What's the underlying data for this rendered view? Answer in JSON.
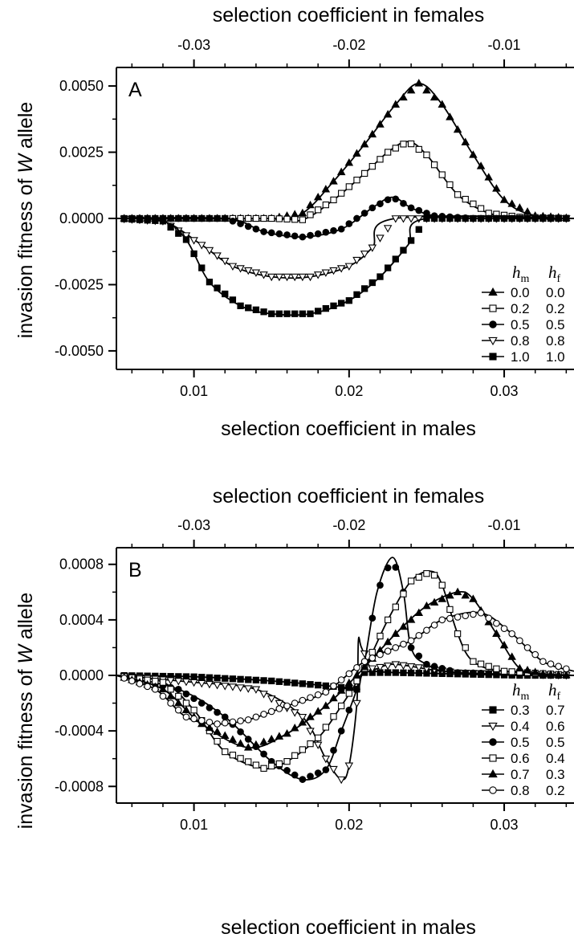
{
  "chart_data": [
    {
      "type": "line",
      "panel": "A",
      "top_xlabel": "selection coefficient in females",
      "xlabel": "selection coefficient in males",
      "ylabel_parts": [
        "invasion fitness of ",
        "W",
        " allele"
      ],
      "xlim": [
        0.005,
        0.0345
      ],
      "ylim": [
        -0.0057,
        0.0057
      ],
      "xticks": [
        0.01,
        0.02,
        0.03
      ],
      "xticklabels": [
        "0.01",
        "0.02",
        "0.03"
      ],
      "top_xticks": [
        0.01,
        0.02,
        0.03
      ],
      "top_xticklabels": [
        "-0.03",
        "-0.02",
        "-0.01"
      ],
      "yticks": [
        0.005,
        0.0025,
        0,
        -0.0025,
        -0.005
      ],
      "yticklabels": [
        "0.0050",
        "0.0025",
        "0.0000",
        "-0.0025",
        "-0.0050"
      ],
      "legend": {
        "placement": "bottom-right",
        "headers": {
          "hm": {
            "main": "h",
            "sub": "m"
          },
          "hf": {
            "main": "h",
            "sub": "f"
          }
        }
      },
      "series": [
        {
          "hm": "0.0",
          "hf": "0.0",
          "marker": "filled-triangle-up",
          "points": [
            [
              0.005,
              0
            ],
            [
              0.015,
              0
            ],
            [
              0.017,
              0.0002
            ],
            [
              0.019,
              0.0014
            ],
            [
              0.021,
              0.0028
            ],
            [
              0.023,
              0.0043
            ],
            [
              0.0245,
              0.0051
            ],
            [
              0.026,
              0.0043
            ],
            [
              0.028,
              0.0024
            ],
            [
              0.03,
              0.0007
            ],
            [
              0.032,
              0.0001
            ],
            [
              0.0345,
              0
            ]
          ]
        },
        {
          "hm": "0.2",
          "hf": "0.2",
          "marker": "open-square",
          "points": [
            [
              0.005,
              0
            ],
            [
              0.015,
              0
            ],
            [
              0.017,
              -5e-05
            ],
            [
              0.019,
              0.0007
            ],
            [
              0.021,
              0.0017
            ],
            [
              0.0225,
              0.0025
            ],
            [
              0.0238,
              0.0029
            ],
            [
              0.025,
              0.0024
            ],
            [
              0.027,
              0.0009
            ],
            [
              0.029,
              0.0002
            ],
            [
              0.031,
              5e-05
            ],
            [
              0.0345,
              0
            ]
          ]
        },
        {
          "hm": "0.5",
          "hf": "0.5",
          "marker": "filled-circle",
          "points": [
            [
              0.005,
              0
            ],
            [
              0.012,
              0
            ],
            [
              0.0145,
              -0.0005
            ],
            [
              0.017,
              -0.0007
            ],
            [
              0.0195,
              -0.0004
            ],
            [
              0.0215,
              0.0004
            ],
            [
              0.0228,
              0.0008
            ],
            [
              0.024,
              0.0004
            ],
            [
              0.0255,
              0.0001
            ],
            [
              0.028,
              0
            ],
            [
              0.0345,
              0
            ]
          ]
        },
        {
          "hm": "0.8",
          "hf": "0.8",
          "marker": "open-triangle-down",
          "points": [
            [
              0.005,
              0
            ],
            [
              0.008,
              -0.0001
            ],
            [
              0.0105,
              -0.001
            ],
            [
              0.0125,
              -0.0018
            ],
            [
              0.015,
              -0.0022
            ],
            [
              0.0175,
              -0.0022
            ],
            [
              0.02,
              -0.0018
            ],
            [
              0.0215,
              -0.0011
            ],
            [
              0.023,
              0
            ],
            [
              0.0345,
              0
            ]
          ]
        },
        {
          "hm": "1.0",
          "hf": "1.0",
          "marker": "filled-square",
          "points": [
            [
              0.005,
              0
            ],
            [
              0.008,
              -0.0001
            ],
            [
              0.0095,
              -0.0008
            ],
            [
              0.011,
              -0.0024
            ],
            [
              0.013,
              -0.0033
            ],
            [
              0.015,
              -0.0036
            ],
            [
              0.0175,
              -0.0036
            ],
            [
              0.02,
              -0.0031
            ],
            [
              0.022,
              -0.0022
            ],
            [
              0.0238,
              -0.001
            ],
            [
              0.025,
              0
            ],
            [
              0.0345,
              0
            ]
          ]
        }
      ]
    },
    {
      "type": "line",
      "panel": "B",
      "top_xlabel": "selection coefficient in females",
      "xlabel": "selection coefficient in males",
      "ylabel_parts": [
        "invasion fitness of ",
        "W",
        " allele"
      ],
      "xlim": [
        0.005,
        0.0345
      ],
      "ylim": [
        -0.00092,
        0.00092
      ],
      "xticks": [
        0.01,
        0.02,
        0.03
      ],
      "xticklabels": [
        "0.01",
        "0.02",
        "0.03"
      ],
      "top_xticks": [
        0.01,
        0.02,
        0.03
      ],
      "top_xticklabels": [
        "-0.03",
        "-0.02",
        "-0.01"
      ],
      "yticks": [
        0.0008,
        0.0004,
        0,
        -0.0004,
        -0.0008
      ],
      "yticklabels": [
        "0.0008",
        "0.0004",
        "0.0000",
        "-0.0004",
        "-0.0008"
      ],
      "legend": {
        "placement": "bottom-right",
        "headers": {
          "hm": {
            "main": "h",
            "sub": "m"
          },
          "hf": {
            "main": "h",
            "sub": "f"
          }
        }
      },
      "series": [
        {
          "hm": "0.3",
          "hf": "0.7",
          "marker": "filled-square",
          "points": [
            [
              0.005,
              0
            ],
            [
              0.01,
              -1e-05
            ],
            [
              0.015,
              -4e-05
            ],
            [
              0.019,
              -8e-05
            ],
            [
              0.0205,
              -0.0001
            ],
            [
              0.021,
              2e-05
            ],
            [
              0.023,
              2e-05
            ],
            [
              0.027,
              1e-05
            ],
            [
              0.031,
              0
            ],
            [
              0.0345,
              0
            ]
          ]
        },
        {
          "hm": "0.4",
          "hf": "0.6",
          "marker": "open-triangle-down",
          "points": [
            [
              0.005,
              0
            ],
            [
              0.01,
              -5e-05
            ],
            [
              0.014,
              -0.0001
            ],
            [
              0.017,
              -0.0003
            ],
            [
              0.0185,
              -0.0006
            ],
            [
              0.0195,
              -0.00075
            ],
            [
              0.02,
              -0.00065
            ],
            [
              0.0205,
              -0.0002
            ],
            [
              0.0206,
              0.00025
            ],
            [
              0.0208,
              0.0002
            ],
            [
              0.0215,
              5e-05
            ],
            [
              0.023,
              8e-05
            ],
            [
              0.027,
              2e-05
            ],
            [
              0.0345,
              0
            ]
          ]
        },
        {
          "hm": "0.5",
          "hf": "0.5",
          "marker": "filled-circle",
          "points": [
            [
              0.005,
              0
            ],
            [
              0.009,
              -0.0001
            ],
            [
              0.012,
              -0.0003
            ],
            [
              0.015,
              -0.00062
            ],
            [
              0.017,
              -0.00075
            ],
            [
              0.0185,
              -0.00068
            ],
            [
              0.0195,
              -0.0004
            ],
            [
              0.0205,
              -0.0001
            ],
            [
              0.021,
              0.0001
            ],
            [
              0.0218,
              0.0006
            ],
            [
              0.0228,
              0.00085
            ],
            [
              0.0235,
              0.0006
            ],
            [
              0.024,
              0.0002
            ],
            [
              0.025,
              8e-05
            ],
            [
              0.027,
              2e-05
            ],
            [
              0.0345,
              0
            ]
          ]
        },
        {
          "hm": "0.6",
          "hf": "0.4",
          "marker": "open-square",
          "points": [
            [
              0.005,
              0
            ],
            [
              0.008,
              -5e-05
            ],
            [
              0.01,
              -0.00025
            ],
            [
              0.012,
              -0.00055
            ],
            [
              0.0145,
              -0.00067
            ],
            [
              0.016,
              -0.00062
            ],
            [
              0.018,
              -0.00045
            ],
            [
              0.0195,
              -0.00022
            ],
            [
              0.021,
              5e-05
            ],
            [
              0.0225,
              0.0004
            ],
            [
              0.024,
              0.00068
            ],
            [
              0.0253,
              0.00075
            ],
            [
              0.026,
              0.00065
            ],
            [
              0.027,
              0.0003
            ],
            [
              0.028,
              0.0001
            ],
            [
              0.03,
              3e-05
            ],
            [
              0.0345,
              0
            ]
          ]
        },
        {
          "hm": "0.7",
          "hf": "0.3",
          "marker": "filled-triangle-up",
          "points": [
            [
              0.005,
              0
            ],
            [
              0.008,
              -0.0001
            ],
            [
              0.0105,
              -0.00035
            ],
            [
              0.0135,
              -0.00052
            ],
            [
              0.016,
              -0.00042
            ],
            [
              0.0185,
              -0.00022
            ],
            [
              0.0205,
              0
            ],
            [
              0.023,
              0.0003
            ],
            [
              0.025,
              0.0005
            ],
            [
              0.027,
              0.0006
            ],
            [
              0.028,
              0.00055
            ],
            [
              0.0295,
              0.0003
            ],
            [
              0.031,
              5e-05
            ],
            [
              0.0325,
              1e-05
            ],
            [
              0.0345,
              0
            ]
          ]
        },
        {
          "hm": "0.8",
          "hf": "0.2",
          "marker": "open-circle",
          "points": [
            [
              0.005,
              0
            ],
            [
              0.0075,
              -0.0001
            ],
            [
              0.0095,
              -0.0003
            ],
            [
              0.0115,
              -0.00035
            ],
            [
              0.0135,
              -0.00032
            ],
            [
              0.016,
              -0.00022
            ],
            [
              0.0185,
              -0.00012
            ],
            [
              0.021,
              0.0001
            ],
            [
              0.024,
              0.00025
            ],
            [
              0.026,
              0.0004
            ],
            [
              0.0285,
              0.00045
            ],
            [
              0.0305,
              0.0003
            ],
            [
              0.0325,
              0.0001
            ],
            [
              0.0345,
              3e-05
            ]
          ]
        }
      ]
    }
  ]
}
